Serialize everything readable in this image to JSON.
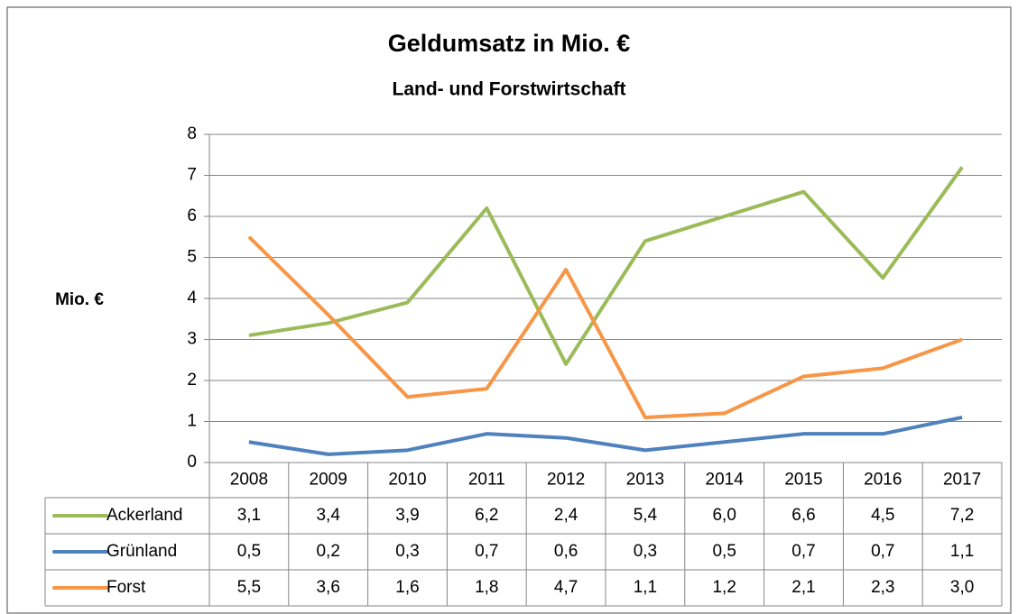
{
  "chart_data": {
    "type": "line",
    "title": "Geldumsatz in Mio. €",
    "subtitle": "Land- und Forstwirtschaft",
    "y_label": "Mio. €",
    "categories": [
      "2008",
      "2009",
      "2010",
      "2011",
      "2012",
      "2013",
      "2014",
      "2015",
      "2016",
      "2017"
    ],
    "series": [
      {
        "name": "Ackerland",
        "color": "#9bbb59",
        "values": [
          3.1,
          3.4,
          3.9,
          6.2,
          2.4,
          5.4,
          6.0,
          6.6,
          4.5,
          7.2
        ],
        "value_labels": [
          "3,1",
          "3,4",
          "3,9",
          "6,2",
          "2,4",
          "5,4",
          "6,0",
          "6,6",
          "4,5",
          "7,2"
        ]
      },
      {
        "name": "Grünland",
        "color": "#4f81bd",
        "values": [
          0.5,
          0.2,
          0.3,
          0.7,
          0.6,
          0.3,
          0.5,
          0.7,
          0.7,
          1.1
        ],
        "value_labels": [
          "0,5",
          "0,2",
          "0,3",
          "0,7",
          "0,6",
          "0,3",
          "0,5",
          "0,7",
          "0,7",
          "1,1"
        ]
      },
      {
        "name": "Forst",
        "color": "#f79646",
        "values": [
          5.5,
          3.6,
          1.6,
          1.8,
          4.7,
          1.1,
          1.2,
          2.1,
          2.3,
          3.0
        ],
        "value_labels": [
          "5,5",
          "3,6",
          "1,6",
          "1,8",
          "4,7",
          "1,1",
          "1,2",
          "2,1",
          "2,3",
          "3,0"
        ]
      }
    ],
    "ylim": [
      0,
      8
    ],
    "yticks": [
      0,
      1,
      2,
      3,
      4,
      5,
      6,
      7,
      8
    ],
    "grid": true,
    "legend": "table"
  }
}
